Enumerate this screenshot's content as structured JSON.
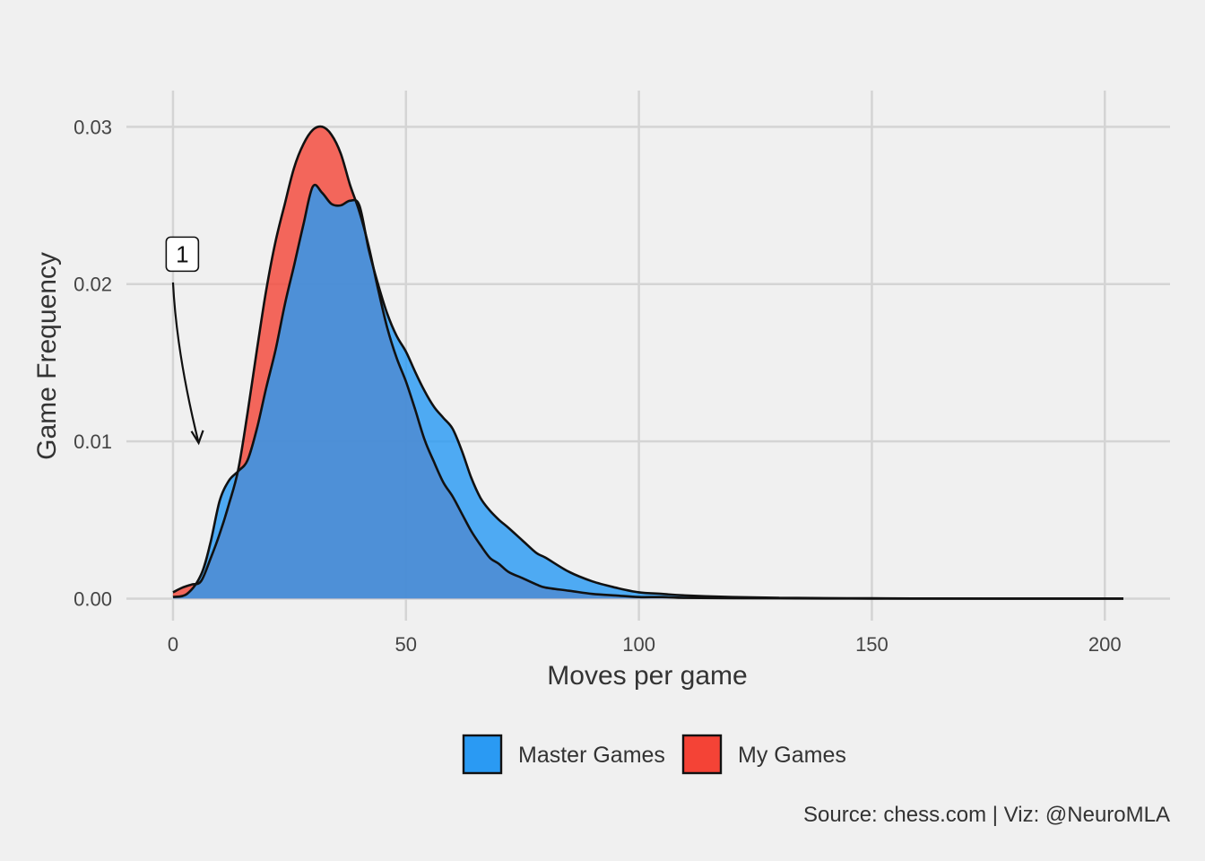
{
  "chart_data": {
    "type": "area",
    "subtype": "density",
    "xlabel": "Moves per game",
    "ylabel": "Game Frequency",
    "xlim": [
      -10,
      214
    ],
    "ylim": [
      -0.0014,
      0.0323
    ],
    "x_ticks": [
      0,
      50,
      100,
      150,
      200
    ],
    "x_tick_labels": [
      "0",
      "50",
      "100",
      "150",
      "200"
    ],
    "y_ticks": [
      0,
      0.01,
      0.02,
      0.03
    ],
    "y_tick_labels": [
      "0.00",
      "0.01",
      "0.02",
      "0.03"
    ],
    "grid": true,
    "legend_position": "bottom",
    "series": [
      {
        "name": "Master Games",
        "color": "#2a9af3",
        "x": [
          0,
          3,
          6,
          8,
          10,
          12,
          14,
          16,
          18,
          20,
          22,
          24,
          26,
          28,
          30,
          32,
          34,
          36,
          38,
          40,
          42,
          44,
          46,
          48,
          50,
          52,
          54,
          56,
          58,
          60,
          62,
          64,
          66,
          68,
          70,
          72,
          75,
          78,
          80,
          85,
          90,
          95,
          100,
          105,
          110,
          120,
          130,
          140,
          150,
          160,
          180,
          204
        ],
        "values": [
          0.0001,
          0.0003,
          0.0015,
          0.0035,
          0.0062,
          0.0075,
          0.0081,
          0.0088,
          0.0108,
          0.0134,
          0.0158,
          0.0187,
          0.0212,
          0.0238,
          0.0262,
          0.0258,
          0.0251,
          0.025,
          0.0253,
          0.025,
          0.0222,
          0.02,
          0.0181,
          0.0167,
          0.0157,
          0.0144,
          0.0132,
          0.0122,
          0.0115,
          0.0108,
          0.0094,
          0.0077,
          0.0064,
          0.0056,
          0.005,
          0.0045,
          0.0037,
          0.0029,
          0.0026,
          0.0017,
          0.0011,
          0.0007,
          0.0004,
          0.0003,
          0.0002,
          0.0001,
          5e-05,
          3e-05,
          2e-05,
          1e-05,
          0.0,
          0.0
        ]
      },
      {
        "name": "My Games",
        "color": "#f44336",
        "x": [
          0,
          2,
          4,
          6,
          8,
          10,
          12,
          14,
          16,
          18,
          20,
          22,
          24,
          26,
          28,
          30,
          32,
          34,
          36,
          38,
          40,
          42,
          44,
          46,
          48,
          50,
          52,
          54,
          56,
          58,
          60,
          62,
          64,
          66,
          68,
          70,
          72,
          75,
          78,
          80,
          85,
          90,
          95,
          100,
          105,
          110,
          120,
          130,
          140,
          150,
          160,
          180,
          204
        ],
        "values": [
          0.0004,
          0.0007,
          0.0009,
          0.0011,
          0.0025,
          0.0041,
          0.006,
          0.0082,
          0.0118,
          0.0158,
          0.0196,
          0.0227,
          0.0251,
          0.0274,
          0.0289,
          0.0298,
          0.03,
          0.0295,
          0.0283,
          0.0263,
          0.0246,
          0.0224,
          0.0197,
          0.0172,
          0.0153,
          0.0138,
          0.012,
          0.0101,
          0.0087,
          0.0074,
          0.0065,
          0.0054,
          0.0043,
          0.0034,
          0.0026,
          0.0022,
          0.0017,
          0.0013,
          0.0009,
          0.0007,
          0.0005,
          0.0003,
          0.0002,
          0.0001,
          0.0001,
          5e-05,
          3e-05,
          2e-05,
          1e-05,
          0.0,
          0.0,
          0.0,
          0.0
        ]
      }
    ],
    "annotation": {
      "label": "1",
      "label_x": 2,
      "label_y": 0.0219,
      "arrow_from": [
        0,
        0.0201
      ],
      "arrow_to": [
        5.5,
        0.0099
      ]
    },
    "caption": "Source: chess.com | Viz: @NeuroMLA"
  }
}
